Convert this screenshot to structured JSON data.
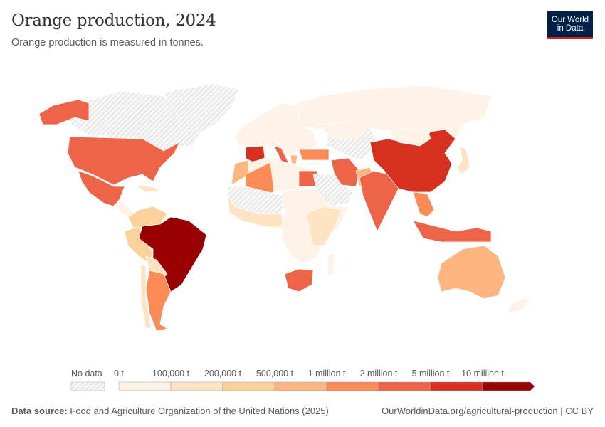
{
  "header": {
    "title": "Orange production, 2024",
    "subtitle": "Orange production is measured in tonnes.",
    "logo_line1": "Our World",
    "logo_line2": "in Data"
  },
  "legend": {
    "no_data_label": "No data",
    "bins": [
      {
        "label": "0 t",
        "color": "#fef3e6"
      },
      {
        "label": "100,000 t",
        "color": "#fee4c3"
      },
      {
        "label": "200,000 t",
        "color": "#fdd19a"
      },
      {
        "label": "500,000 t",
        "color": "#fdb67f"
      },
      {
        "label": "1 million t",
        "color": "#fc8b58"
      },
      {
        "label": "2 million t",
        "color": "#ee6448"
      },
      {
        "label": "5 million t",
        "color": "#d6301f"
      },
      {
        "label": "10 million t",
        "color": "#990000"
      }
    ]
  },
  "regions": {
    "canada": "nodata",
    "greenland": "nodata",
    "alaska": "#ee6448",
    "usa": "#ee6448",
    "mexico": "#ee6448",
    "central_america": "#fef3e6",
    "caribbean": "#fee4c3",
    "venezuela_colombia": "#fdd19a",
    "peru": "#fdd19a",
    "brazil": "#990000",
    "bolivia_paraguay": "#fee4c3",
    "argentina": "#fc8b58",
    "chile": "#fee4c3",
    "russia": "#fef3e6",
    "europe": "#fef3e6",
    "spain": "#d6301f",
    "italy": "#ee6448",
    "turkey": "#fc8b58",
    "greece": "#fdb67f",
    "north_africa": "#fef3e6",
    "morocco": "#fdb67f",
    "algeria": "#fc8b58",
    "egypt": "#ee6448",
    "sahara": "nodata",
    "west_africa": "#fee4c3",
    "central_africa": "#fef3e6",
    "east_africa": "#fee4c3",
    "south_africa": "#ee6448",
    "arabia": "nodata",
    "iran": "#ee6448",
    "central_asia": "nodata",
    "kazakhstan": "#fef3e6",
    "india": "#ee6448",
    "pakistan": "#fdb67f",
    "china": "#d6301f",
    "mongolia": "#fef3e6",
    "japan": "#fee4c3",
    "se_asia": "#fc8b58",
    "indonesia": "#ee6448",
    "australia": "#fdb67f",
    "new_zealand": "#fef3e6",
    "madagascar": "#fef3e6"
  },
  "footer": {
    "source_label": "Data source:",
    "source": "Food and Agriculture Organization of the United Nations (2025)",
    "url": "OurWorldinData.org/agricultural-production | CC BY"
  }
}
